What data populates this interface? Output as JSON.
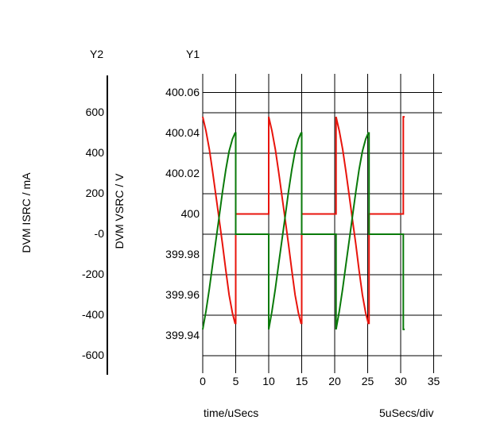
{
  "labels": {
    "y2_header": "Y2",
    "y1_header": "Y1",
    "y2_axis_title": "DVM ISRC / mA",
    "y1_axis_title": "DVM VSRC / V",
    "x_axis_title": "time/uSecs",
    "x_scale_note": "5uSecs/div"
  },
  "chart_data": {
    "type": "line",
    "x_range": [
      0,
      35
    ],
    "x_ticks": [
      "0",
      "5",
      "10",
      "15",
      "20",
      "25",
      "30",
      "35"
    ],
    "y1_range": [
      399.93,
      400.07
    ],
    "y1_ticks": [
      "399.94",
      "399.96",
      "399.98",
      "400",
      "400.02",
      "400.04",
      "400.06"
    ],
    "y2_range": [
      -700,
      700
    ],
    "y2_ticks": [
      "-600",
      "-400",
      "-200",
      "-0",
      "200",
      "400",
      "600"
    ],
    "grid": true,
    "colors": {
      "voltage": "#e8140c",
      "current": "#0a7a0a"
    },
    "series": [
      {
        "axis": "y1",
        "color": "#e8140c",
        "x": [
          0,
          0.5,
          1,
          1.5,
          2,
          2.5,
          3,
          3.5,
          4,
          4.5,
          4.9,
          5,
          5,
          10,
          10,
          10.5,
          11,
          11.5,
          12,
          12.5,
          13,
          13.5,
          14,
          14.5,
          14.9,
          15,
          15,
          20.2,
          20.2,
          20.7,
          21.2,
          21.7,
          22.2,
          22.7,
          23.2,
          23.7,
          24.2,
          24.7,
          25.1,
          25.2,
          25.2,
          30.4,
          30.4,
          30.6
        ],
        "y": [
          400.048,
          400.041,
          400.032,
          400.021,
          400.009,
          399.997,
          399.985,
          399.972,
          399.96,
          399.951,
          399.946,
          399.946,
          400.0,
          400.0,
          400.048,
          400.041,
          400.032,
          400.021,
          400.009,
          399.997,
          399.985,
          399.972,
          399.96,
          399.951,
          399.946,
          399.946,
          400.0,
          400.0,
          400.048,
          400.041,
          400.032,
          400.021,
          400.009,
          399.997,
          399.985,
          399.972,
          399.96,
          399.951,
          399.946,
          399.946,
          400.0,
          400.0,
          400.048,
          400.048
        ]
      },
      {
        "axis": "y2",
        "color": "#0a7a0a",
        "x": [
          0,
          0.5,
          1,
          1.5,
          2,
          2.5,
          3,
          3.5,
          4,
          4.5,
          4.9,
          5,
          5,
          10,
          10,
          10.5,
          11,
          11.5,
          12,
          12.5,
          13,
          13.5,
          14,
          14.5,
          14.9,
          15,
          15,
          20.2,
          20.2,
          20.7,
          21.2,
          21.7,
          22.2,
          22.7,
          23.2,
          23.7,
          24.2,
          24.7,
          25.1,
          25.2,
          25.2,
          30.4,
          30.4,
          30.6
        ],
        "y": [
          -470,
          -380,
          -270,
          -150,
          -30,
          90,
          210,
          320,
          410,
          470,
          500,
          500,
          0,
          0,
          -470,
          -380,
          -270,
          -150,
          -30,
          90,
          210,
          320,
          410,
          470,
          500,
          500,
          0,
          0,
          -470,
          -380,
          -270,
          -150,
          -30,
          90,
          210,
          320,
          410,
          470,
          500,
          500,
          0,
          0,
          -470,
          -470
        ]
      }
    ]
  }
}
